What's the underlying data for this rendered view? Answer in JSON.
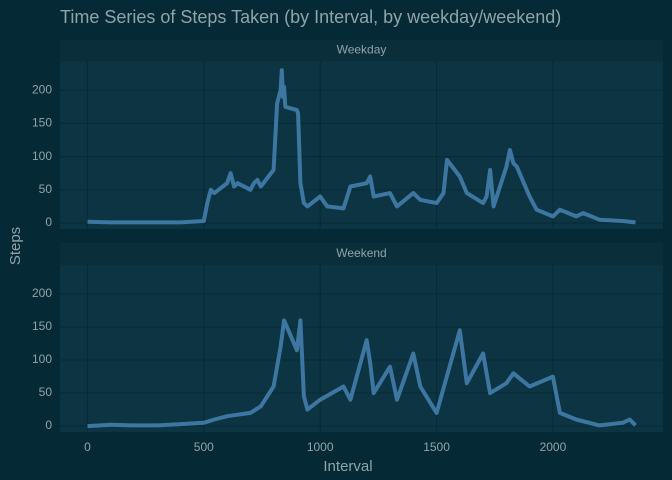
{
  "title": "Time Series of Steps Taken (by Interval, by weekday/weekend)",
  "x_label": "Interval",
  "y_label": "Steps",
  "chart_data": [
    {
      "type": "line",
      "title": "Weekday",
      "color": "#3e76a2",
      "grid": true,
      "x": [
        0,
        100,
        200,
        300,
        400,
        500,
        515,
        530,
        545,
        600,
        615,
        630,
        645,
        700,
        715,
        730,
        745,
        800,
        815,
        830,
        835,
        840,
        845,
        850,
        900,
        905,
        915,
        930,
        945,
        1000,
        1030,
        1100,
        1130,
        1200,
        1215,
        1230,
        1300,
        1330,
        1400,
        1430,
        1500,
        1530,
        1545,
        1600,
        1630,
        1700,
        1715,
        1730,
        1745,
        1800,
        1815,
        1830,
        1845,
        1900,
        1930,
        2000,
        2030,
        2100,
        2130,
        2200,
        2300,
        2355
      ],
      "values": [
        2,
        1,
        1,
        1,
        1,
        3,
        30,
        50,
        45,
        60,
        75,
        55,
        60,
        50,
        60,
        65,
        55,
        80,
        180,
        200,
        230,
        190,
        205,
        175,
        170,
        165,
        60,
        30,
        25,
        40,
        25,
        22,
        55,
        60,
        70,
        40,
        45,
        25,
        45,
        35,
        30,
        45,
        95,
        70,
        45,
        30,
        40,
        80,
        25,
        85,
        110,
        90,
        85,
        40,
        20,
        10,
        20,
        10,
        15,
        5,
        3,
        1
      ],
      "xlim": [
        -118,
        2473
      ],
      "ylim": [
        -9,
        244
      ],
      "xticks": [
        0,
        500,
        1000,
        1500,
        2000
      ],
      "yticks": [
        0,
        50,
        100,
        150,
        200
      ]
    },
    {
      "type": "line",
      "title": "Weekend",
      "color": "#3e76a2",
      "grid": true,
      "x": [
        0,
        100,
        200,
        300,
        400,
        500,
        545,
        600,
        700,
        745,
        800,
        830,
        845,
        900,
        915,
        930,
        945,
        1000,
        1100,
        1130,
        1200,
        1215,
        1230,
        1300,
        1330,
        1400,
        1430,
        1500,
        1600,
        1630,
        1700,
        1730,
        1800,
        1830,
        1900,
        2000,
        2030,
        2100,
        2200,
        2300,
        2330,
        2355
      ],
      "values": [
        0,
        2,
        1,
        1,
        3,
        5,
        10,
        15,
        20,
        30,
        60,
        120,
        160,
        115,
        160,
        45,
        25,
        40,
        60,
        40,
        130,
        95,
        50,
        90,
        40,
        110,
        60,
        20,
        145,
        65,
        110,
        50,
        65,
        80,
        60,
        75,
        20,
        10,
        1,
        5,
        10,
        1
      ],
      "xlim": [
        -118,
        2473
      ],
      "ylim": [
        -9,
        244
      ],
      "xticks": [
        0,
        500,
        1000,
        1500,
        2000
      ],
      "yticks": [
        0,
        50,
        100,
        150,
        200
      ]
    }
  ]
}
